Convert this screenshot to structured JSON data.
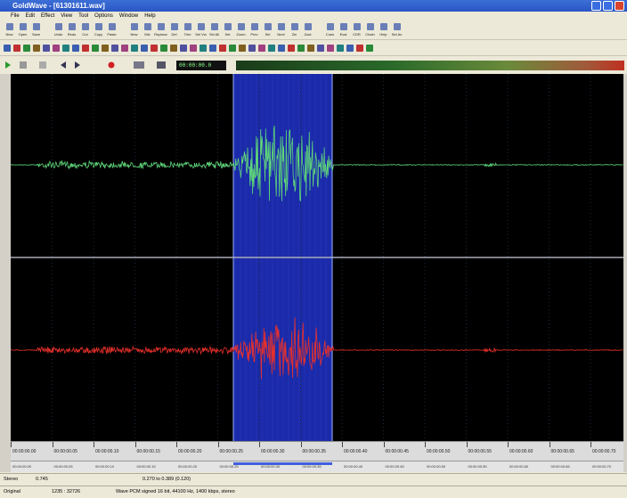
{
  "window": {
    "title": "GoldWave - [61301611.wav]"
  },
  "menu": [
    "File",
    "Edit",
    "Effect",
    "View",
    "Tool",
    "Options",
    "Window",
    "Help"
  ],
  "toolbar": [
    "New",
    "Open",
    "Save",
    "Undo",
    "Redo",
    "Cut",
    "Copy",
    "Paste",
    "New",
    "Mix",
    "Replace",
    "Del",
    "Trim",
    "Sel Vw",
    "Sel All",
    "Set",
    "Zoom",
    "Prev",
    "Sel",
    "Next",
    "Zin",
    "Zout",
    "Cues",
    "Eval",
    "CDR",
    "Chain",
    "Help",
    "Set Ax"
  ],
  "transport": {
    "time": "00:00:00.0"
  },
  "timeline": {
    "labels": [
      "00:00:00.00",
      "00:00:00.05",
      "00:00:00.10",
      "00:00:00.15",
      "00:00:00.20",
      "00:00:00.25",
      "00:00:00.30",
      "00:00:00.35",
      "00:00:00.40",
      "00:00:00.45",
      "00:00:00.50",
      "00:00:00.55",
      "00:00:00.60",
      "00:00:00.65",
      "00:00:00.70"
    ]
  },
  "overview": {
    "labels": [
      "00:00:00.00",
      "00:00:00.05",
      "00:00:00.10",
      "00:00:00.15",
      "00:00:00.20",
      "00:00:00.25",
      "00:00:00.30",
      "00:00:00.35",
      "00:00:00.40",
      "00:00:00.45",
      "00:00:00.50",
      "00:00:00.55",
      "00:00:00.60",
      "00:00:00.65",
      "00:00:00.70"
    ]
  },
  "status": {
    "row1": [
      "Stereo",
      "0.745",
      "0.270 to 0.389 (0.120)"
    ],
    "row2": [
      "Original",
      "1235 : 32726",
      "Wave PCM signed 16 bit, 44100 Hz, 1400 kbps, stereo"
    ]
  }
}
